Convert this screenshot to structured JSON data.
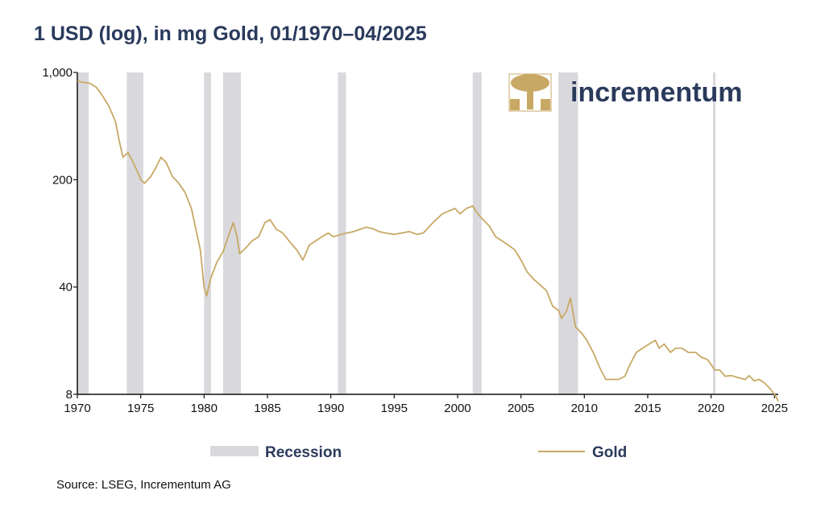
{
  "chart_data": {
    "type": "line",
    "title": "1 USD (log), in mg Gold, 01/1970–04/2025",
    "source": "Source: LSEG, Incrementum AG",
    "brand": "incrementum",
    "x_axis": {
      "min": 1970,
      "max": 2025.3,
      "ticks": [
        "1970",
        "1975",
        "1980",
        "1985",
        "1990",
        "1995",
        "2000",
        "2005",
        "2010",
        "2015",
        "2020",
        "2025"
      ]
    },
    "y_axis": {
      "scale": "log",
      "min": 8,
      "max": 1000,
      "ticks": [
        {
          "value": 1000,
          "label": "1,000"
        },
        {
          "value": 200,
          "label": "200"
        },
        {
          "value": 40,
          "label": "40"
        },
        {
          "value": 8,
          "label": "8"
        }
      ]
    },
    "grid": false,
    "legend": {
      "placement": "bottom",
      "items": [
        {
          "label": "Recession"
        },
        {
          "label": "Gold"
        }
      ]
    },
    "colors": {
      "gold": "#c8a865",
      "recession": "#d9d9dd",
      "title": "#2a3a5c",
      "axis": "#111111"
    },
    "recessions": [
      [
        1970.0,
        1970.9
      ],
      [
        1973.9,
        1975.2
      ],
      [
        1980.0,
        1980.55
      ],
      [
        1981.5,
        1982.9
      ],
      [
        1990.55,
        1991.2
      ],
      [
        2001.2,
        2001.9
      ],
      [
        2007.95,
        2009.5
      ],
      [
        2020.15,
        2020.35
      ]
    ],
    "series": [
      {
        "name": "Gold",
        "x": [
          1970.0,
          1970.5,
          1971.0,
          1971.5,
          1972.0,
          1972.5,
          1973.0,
          1973.3,
          1973.6,
          1974.0,
          1974.4,
          1974.8,
          1975.0,
          1975.3,
          1975.8,
          1976.2,
          1976.6,
          1977.0,
          1977.5,
          1978.0,
          1978.5,
          1979.0,
          1979.3,
          1979.7,
          1980.0,
          1980.2,
          1980.5,
          1981.0,
          1981.5,
          1982.0,
          1982.3,
          1982.6,
          1982.8,
          1983.3,
          1983.8,
          1984.3,
          1984.8,
          1985.2,
          1985.7,
          1986.2,
          1986.8,
          1987.3,
          1987.8,
          1988.3,
          1988.8,
          1989.3,
          1989.8,
          1990.2,
          1990.8,
          1991.3,
          1991.8,
          1992.3,
          1992.8,
          1993.3,
          1993.8,
          1994.3,
          1995.0,
          1995.6,
          1996.2,
          1996.8,
          1997.3,
          1997.8,
          1998.3,
          1998.8,
          1999.3,
          1999.8,
          2000.2,
          2000.7,
          2001.2,
          2001.6,
          2002.0,
          2002.5,
          2003.0,
          2003.5,
          2004.0,
          2004.5,
          2005.0,
          2005.5,
          2006.0,
          2006.4,
          2007.0,
          2007.5,
          2008.0,
          2008.2,
          2008.6,
          2008.9,
          2009.3,
          2009.8,
          2010.2,
          2010.7,
          2011.2,
          2011.7,
          2012.2,
          2012.7,
          2013.2,
          2013.6,
          2014.1,
          2014.6,
          2015.1,
          2015.6,
          2015.9,
          2016.3,
          2016.8,
          2017.2,
          2017.7,
          2018.2,
          2018.8,
          2019.2,
          2019.7,
          2020.0,
          2020.3,
          2020.7,
          2021.1,
          2021.6,
          2022.1,
          2022.7,
          2023.0,
          2023.4,
          2023.8,
          2024.2,
          2024.6,
          2024.9,
          2025.1,
          2025.3
        ],
        "y": [
          880,
          860,
          850,
          800,
          700,
          600,
          480,
          360,
          280,
          300,
          260,
          220,
          200,
          190,
          210,
          240,
          280,
          260,
          210,
          190,
          165,
          130,
          100,
          70,
          40,
          35,
          45,
          58,
          68,
          90,
          105,
          85,
          66,
          72,
          80,
          85,
          105,
          110,
          95,
          90,
          78,
          70,
          60,
          75,
          80,
          85,
          90,
          85,
          88,
          90,
          92,
          95,
          98,
          96,
          92,
          90,
          88,
          90,
          92,
          88,
          90,
          100,
          110,
          120,
          125,
          130,
          120,
          130,
          135,
          120,
          110,
          100,
          85,
          80,
          75,
          70,
          60,
          50,
          45,
          42,
          38,
          30,
          28,
          25,
          28,
          34,
          22,
          20,
          18,
          15,
          12,
          10,
          10,
          10,
          10.5,
          12.5,
          15,
          16,
          17,
          18,
          16,
          17,
          15,
          16,
          16,
          15,
          15,
          14,
          13.5,
          12.5,
          11.5,
          11.5,
          10.5,
          10.6,
          10.3,
          10,
          10.6,
          9.8,
          10,
          9.5,
          8.8,
          8.2,
          7.8,
          7.2
        ]
      }
    ]
  }
}
